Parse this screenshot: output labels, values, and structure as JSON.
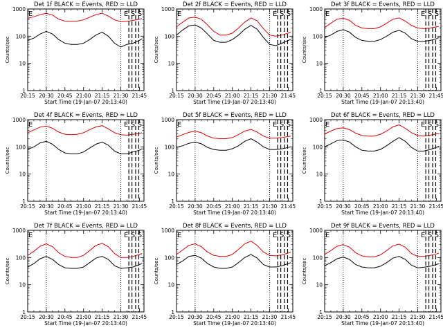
{
  "xlabel": "Start Time (19-Jan-07 20:13:40)",
  "ylabel": "Counts/sec",
  "x_tick_labels": [
    "20:15",
    "20:30",
    "20:45",
    "21:00",
    "21:15",
    "21:30",
    "21:45"
  ],
  "y_tick_labels": [
    "1",
    "10",
    "100",
    "1000"
  ],
  "colors": {
    "events": "#000000",
    "lld": "#e00000"
  },
  "chart_data": [
    {
      "type": "line",
      "title": "Det 1f BLACK = Events, RED = LLD",
      "xlabel": "Start Time (19-Jan-07 20:13:40)",
      "ylabel": "Counts/sec",
      "log_y": true,
      "ylim": [
        1,
        1000
      ],
      "x_unit": "minutes after 20:15",
      "markers": [
        "E",
        "E",
        "S",
        "S"
      ],
      "series": [
        {
          "color": "#000000",
          "x": [
            0,
            5,
            10,
            15,
            20,
            25,
            30,
            35,
            40,
            45,
            50,
            55,
            60,
            65,
            70,
            75,
            80,
            85,
            90,
            92
          ],
          "values": [
            70,
            85,
            120,
            150,
            120,
            75,
            55,
            50,
            50,
            55,
            75,
            110,
            140,
            100,
            55,
            40,
            50,
            55,
            70,
            80
          ]
        },
        {
          "color": "#e00000",
          "x": [
            0,
            5,
            10,
            15,
            20,
            25,
            30,
            35,
            40,
            45,
            50,
            55,
            60,
            65,
            70,
            75,
            80,
            85,
            90,
            92
          ],
          "values": [
            450,
            520,
            620,
            700,
            600,
            420,
            360,
            350,
            360,
            400,
            500,
            620,
            700,
            550,
            400,
            340,
            350,
            380,
            420,
            440
          ]
        }
      ]
    },
    {
      "type": "line",
      "title": "Det 2f BLACK = Events, RED = LLD",
      "xlabel": "Start Time (19-Jan-07 20:13:40)",
      "ylabel": "Counts/sec",
      "log_y": true,
      "ylim": [
        1,
        1000
      ],
      "x_unit": "minutes after 20:15",
      "markers": [
        "E",
        "E",
        "S",
        "S"
      ],
      "series": [
        {
          "color": "#000000",
          "x": [
            0,
            5,
            10,
            15,
            20,
            25,
            30,
            35,
            40,
            45,
            50,
            55,
            60,
            65,
            70,
            75,
            80,
            85,
            90,
            92
          ],
          "values": [
            110,
            170,
            240,
            260,
            200,
            120,
            70,
            60,
            60,
            75,
            110,
            180,
            250,
            180,
            90,
            50,
            45,
            55,
            70,
            75
          ]
        },
        {
          "color": "#e00000",
          "x": [
            0,
            5,
            10,
            15,
            20,
            25,
            30,
            35,
            40,
            45,
            50,
            55,
            60,
            65,
            70,
            75,
            80,
            85,
            90,
            92
          ],
          "values": [
            220,
            330,
            470,
            500,
            420,
            260,
            150,
            110,
            110,
            130,
            200,
            330,
            470,
            370,
            190,
            110,
            100,
            110,
            130,
            140
          ]
        }
      ]
    },
    {
      "type": "line",
      "title": "Det 3f BLACK = Events, RED = LLD",
      "xlabel": "Start Time (19-Jan-07 20:13:40)",
      "ylabel": "Counts/sec",
      "log_y": true,
      "ylim": [
        1,
        1000
      ],
      "x_unit": "minutes after 20:15",
      "markers": [
        "E",
        "E",
        "S",
        "S"
      ],
      "series": [
        {
          "color": "#000000",
          "x": [
            0,
            5,
            10,
            15,
            20,
            25,
            30,
            35,
            40,
            45,
            50,
            55,
            60,
            65,
            70,
            75,
            80,
            85,
            90,
            92
          ],
          "values": [
            90,
            110,
            150,
            175,
            140,
            90,
            70,
            65,
            65,
            75,
            100,
            140,
            165,
            130,
            80,
            65,
            65,
            70,
            80,
            90
          ]
        },
        {
          "color": "#e00000",
          "x": [
            0,
            5,
            10,
            15,
            20,
            25,
            30,
            35,
            40,
            45,
            50,
            55,
            60,
            65,
            70,
            75,
            80,
            85,
            90,
            92
          ],
          "values": [
            210,
            300,
            420,
            460,
            380,
            250,
            200,
            190,
            190,
            220,
            300,
            420,
            470,
            360,
            250,
            200,
            190,
            200,
            220,
            230
          ]
        }
      ]
    },
    {
      "type": "line",
      "title": "Det 4f BLACK = Events, RED = LLD",
      "xlabel": "Start Time (19-Jan-07 20:13:40)",
      "ylabel": "Counts/sec",
      "log_y": true,
      "ylim": [
        1,
        1000
      ],
      "x_unit": "minutes after 20:15",
      "markers": [
        "E",
        "E",
        "S",
        "S"
      ],
      "series": [
        {
          "color": "#000000",
          "x": [
            0,
            5,
            10,
            15,
            20,
            25,
            30,
            35,
            40,
            45,
            50,
            55,
            60,
            65,
            70,
            75,
            80,
            85,
            90,
            92
          ],
          "values": [
            80,
            100,
            140,
            160,
            125,
            80,
            60,
            55,
            55,
            65,
            90,
            125,
            150,
            115,
            70,
            55,
            55,
            65,
            75,
            85
          ]
        },
        {
          "color": "#e00000",
          "x": [
            0,
            5,
            10,
            15,
            20,
            25,
            30,
            35,
            40,
            45,
            50,
            55,
            60,
            65,
            70,
            75,
            80,
            85,
            90,
            92
          ],
          "values": [
            330,
            420,
            530,
            580,
            480,
            350,
            290,
            280,
            290,
            330,
            430,
            540,
            600,
            460,
            330,
            280,
            270,
            290,
            310,
            330
          ]
        }
      ]
    },
    {
      "type": "line",
      "title": "Det 5f BLACK = Events, RED = LLD",
      "xlabel": "Start Time (19-Jan-07 20:13:40)",
      "ylabel": "Counts/sec",
      "log_y": true,
      "ylim": [
        1,
        1000
      ],
      "x_unit": "minutes after 20:15",
      "markers": [
        "E",
        "E",
        "S",
        "S"
      ],
      "series": [
        {
          "color": "#000000",
          "x": [
            0,
            5,
            10,
            15,
            20,
            25,
            30,
            35,
            40,
            45,
            50,
            55,
            60,
            65,
            70,
            75,
            80,
            85,
            90,
            92
          ],
          "values": [
            95,
            110,
            135,
            150,
            130,
            95,
            80,
            75,
            75,
            85,
            110,
            160,
            200,
            150,
            100,
            80,
            80,
            85,
            95,
            100
          ]
        },
        {
          "color": "#e00000",
          "x": [
            0,
            5,
            10,
            15,
            20,
            25,
            30,
            35,
            40,
            45,
            50,
            55,
            60,
            65,
            70,
            75,
            80,
            85,
            90,
            92
          ],
          "values": [
            230,
            280,
            340,
            380,
            330,
            250,
            210,
            200,
            200,
            220,
            280,
            380,
            440,
            350,
            250,
            210,
            210,
            220,
            240,
            250
          ]
        }
      ]
    },
    {
      "type": "line",
      "title": "Det 6f BLACK = Events, RED = LLD",
      "xlabel": "Start Time (19-Jan-07 20:13:40)",
      "ylabel": "Counts/sec",
      "log_y": true,
      "ylim": [
        1,
        1000
      ],
      "x_unit": "minutes after 20:15",
      "markers": [
        "E",
        "E",
        "S",
        "S"
      ],
      "series": [
        {
          "color": "#000000",
          "x": [
            0,
            5,
            10,
            15,
            20,
            25,
            30,
            35,
            40,
            45,
            50,
            55,
            60,
            65,
            70,
            75,
            80,
            85,
            90,
            92
          ],
          "values": [
            100,
            130,
            170,
            180,
            150,
            100,
            75,
            70,
            70,
            80,
            110,
            160,
            220,
            160,
            95,
            70,
            70,
            80,
            95,
            105
          ]
        },
        {
          "color": "#e00000",
          "x": [
            0,
            5,
            10,
            15,
            20,
            25,
            30,
            35,
            40,
            45,
            50,
            55,
            60,
            65,
            70,
            75,
            80,
            85,
            90,
            92
          ],
          "values": [
            300,
            380,
            470,
            500,
            430,
            320,
            260,
            250,
            250,
            290,
            380,
            540,
            650,
            480,
            330,
            260,
            250,
            270,
            300,
            320
          ]
        }
      ]
    },
    {
      "type": "line",
      "title": "Det 7f BLACK = Events, RED = LLD",
      "xlabel": "Start Time (19-Jan-07 20:13:40)",
      "ylabel": "Counts/sec",
      "log_y": true,
      "ylim": [
        1,
        1000
      ],
      "x_unit": "minutes after 20:15",
      "markers": [
        "E",
        "E",
        "S",
        "S"
      ],
      "series": [
        {
          "color": "#000000",
          "x": [
            0,
            5,
            10,
            15,
            20,
            25,
            30,
            35,
            40,
            45,
            50,
            55,
            60,
            65,
            70,
            75,
            80,
            85,
            90,
            92
          ],
          "values": [
            45,
            60,
            90,
            110,
            85,
            55,
            42,
            40,
            40,
            45,
            65,
            95,
            110,
            85,
            50,
            40,
            42,
            45,
            55,
            60
          ]
        },
        {
          "color": "#e00000",
          "x": [
            0,
            5,
            10,
            15,
            20,
            25,
            30,
            35,
            40,
            45,
            50,
            55,
            60,
            65,
            70,
            75,
            80,
            85,
            90,
            92
          ],
          "values": [
            120,
            170,
            260,
            320,
            250,
            150,
            110,
            100,
            100,
            120,
            180,
            280,
            330,
            250,
            140,
            100,
            100,
            110,
            130,
            140
          ]
        }
      ]
    },
    {
      "type": "line",
      "title": "Det 8f BLACK = Events, RED = LLD",
      "xlabel": "Start Time (19-Jan-07 20:13:40)",
      "ylabel": "Counts/sec",
      "log_y": true,
      "ylim": [
        1,
        1000
      ],
      "x_unit": "minutes after 20:15",
      "markers": [
        "E",
        "E",
        "S",
        "S"
      ],
      "series": [
        {
          "color": "#000000",
          "x": [
            0,
            5,
            10,
            15,
            20,
            25,
            30,
            35,
            40,
            45,
            50,
            55,
            60,
            65,
            70,
            75,
            80,
            85,
            90,
            92
          ],
          "values": [
            55,
            75,
            110,
            120,
            95,
            60,
            45,
            40,
            40,
            45,
            65,
            100,
            130,
            95,
            55,
            45,
            45,
            50,
            60,
            65
          ]
        },
        {
          "color": "#e00000",
          "x": [
            0,
            5,
            10,
            15,
            20,
            25,
            30,
            35,
            40,
            45,
            50,
            55,
            60,
            65,
            70,
            75,
            80,
            85,
            90,
            92
          ],
          "values": [
            130,
            190,
            280,
            320,
            250,
            160,
            120,
            110,
            110,
            130,
            200,
            320,
            400,
            280,
            160,
            120,
            115,
            125,
            145,
            155
          ]
        }
      ]
    },
    {
      "type": "line",
      "title": "Det 9f BLACK = Events, RED = LLD",
      "xlabel": "Start Time (19-Jan-07 20:13:40)",
      "ylabel": "Counts/sec",
      "log_y": true,
      "ylim": [
        1,
        1000
      ],
      "x_unit": "minutes after 20:15",
      "markers": [
        "E",
        "E",
        "S",
        "S"
      ],
      "series": [
        {
          "color": "#000000",
          "x": [
            0,
            5,
            10,
            15,
            20,
            25,
            30,
            35,
            40,
            45,
            50,
            55,
            60,
            65,
            70,
            75,
            80,
            85,
            90,
            92
          ],
          "values": [
            50,
            65,
            90,
            105,
            85,
            55,
            45,
            42,
            42,
            48,
            65,
            95,
            110,
            85,
            52,
            42,
            44,
            48,
            55,
            60
          ]
        },
        {
          "color": "#e00000",
          "x": [
            0,
            5,
            10,
            15,
            20,
            25,
            30,
            35,
            40,
            45,
            50,
            55,
            60,
            65,
            70,
            75,
            80,
            85,
            90,
            92
          ],
          "values": [
            130,
            180,
            260,
            300,
            240,
            150,
            115,
            105,
            105,
            125,
            180,
            270,
            310,
            240,
            140,
            110,
            110,
            120,
            135,
            145
          ]
        }
      ]
    }
  ]
}
